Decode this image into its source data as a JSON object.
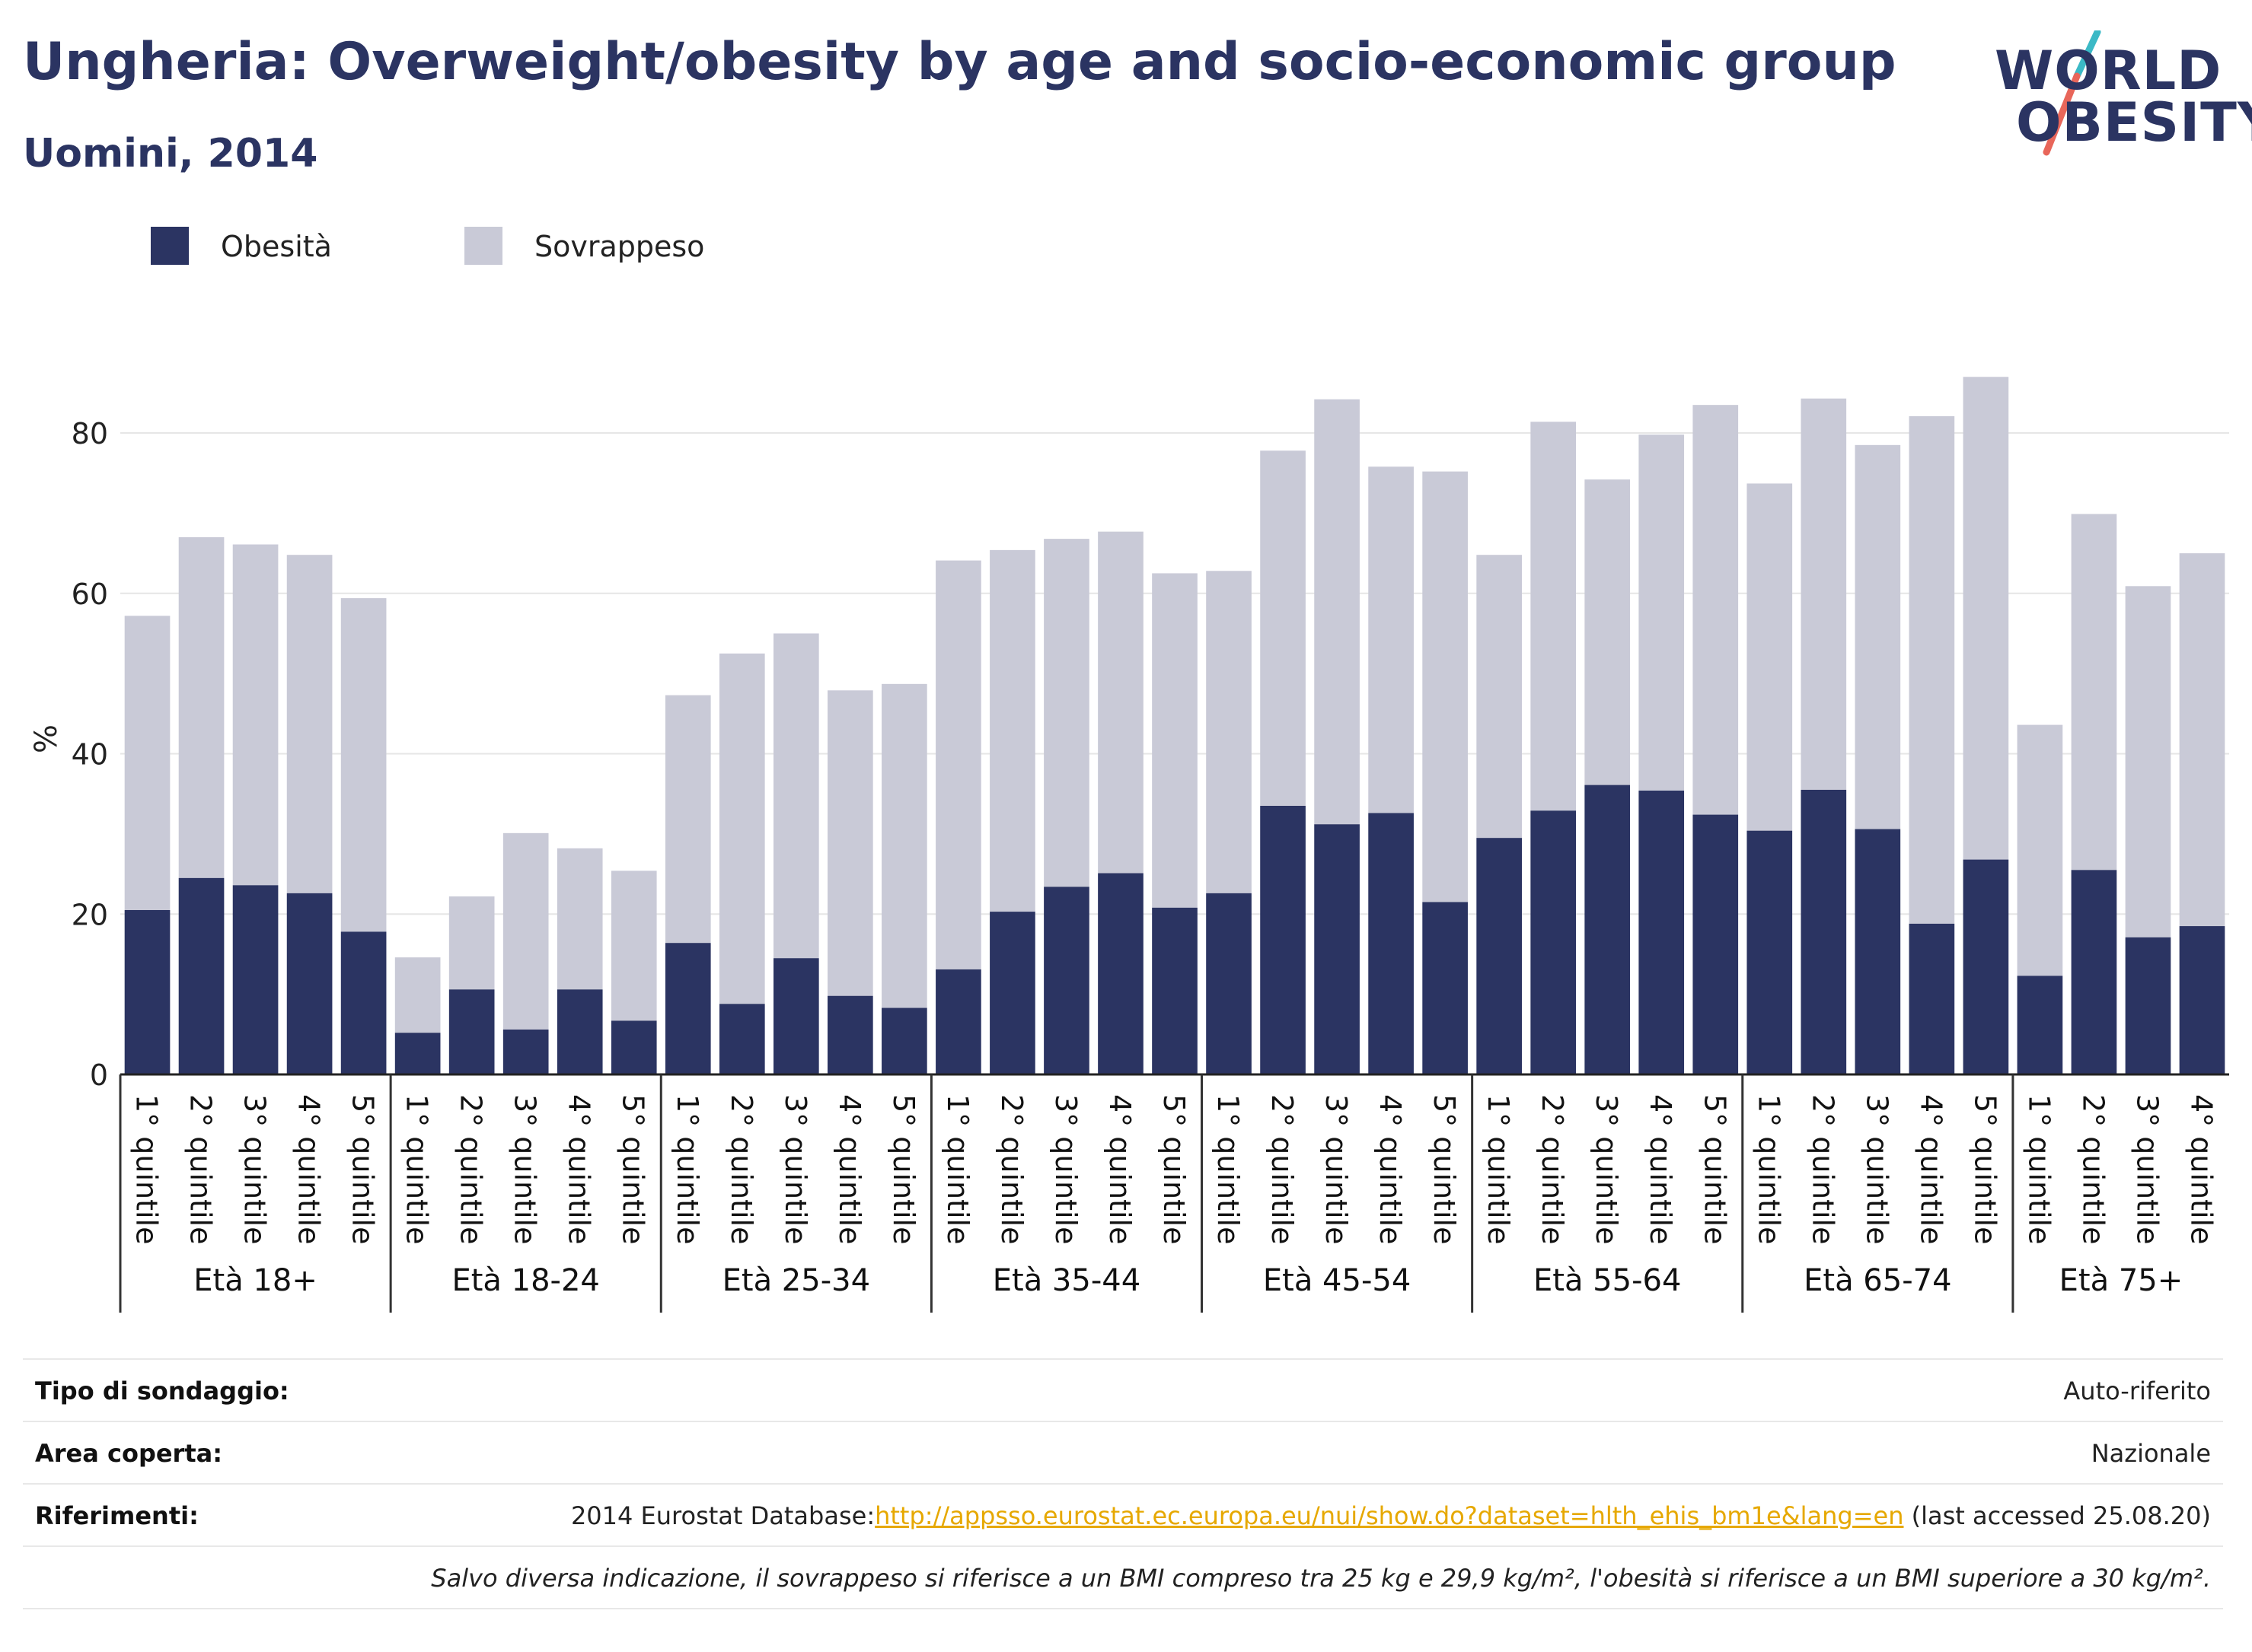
{
  "header": {
    "title": "Ungheria: Overweight/obesity by age and socio-economic group",
    "subtitle": "Uomini, 2014"
  },
  "logo": {
    "line1": "WORLD",
    "line2": "OBESITY",
    "colors": {
      "navy": "#2b3462",
      "teal": "#3bb9c6",
      "coral": "#e8665a"
    }
  },
  "legend": [
    {
      "label": "Obesità",
      "color": "#2b3462"
    },
    {
      "label": "Sovrappeso",
      "color": "#c9cad7"
    }
  ],
  "chart_data": {
    "type": "bar",
    "stacked": true,
    "ylabel": "%",
    "ylim": [
      0,
      92
    ],
    "yticks": [
      0,
      20,
      40,
      60,
      80
    ],
    "grid": true,
    "groups": [
      {
        "label": "Età 18+",
        "categories": [
          "1° quintile",
          "2° quintile",
          "3° quintile",
          "4° quintile",
          "5° quintile"
        ]
      },
      {
        "label": "Età 18-24",
        "categories": [
          "1° quintile",
          "2° quintile",
          "3° quintile",
          "4° quintile",
          "5° quintile"
        ]
      },
      {
        "label": "Età 25-34",
        "categories": [
          "1° quintile",
          "2° quintile",
          "3° quintile",
          "4° quintile",
          "5° quintile"
        ]
      },
      {
        "label": "Età 35-44",
        "categories": [
          "1° quintile",
          "2° quintile",
          "3° quintile",
          "4° quintile",
          "5° quintile"
        ]
      },
      {
        "label": "Età 45-54",
        "categories": [
          "1° quintile",
          "2° quintile",
          "3° quintile",
          "4° quintile",
          "5° quintile"
        ]
      },
      {
        "label": "Età 55-64",
        "categories": [
          "1° quintile",
          "2° quintile",
          "3° quintile",
          "4° quintile",
          "5° quintile"
        ]
      },
      {
        "label": "Età 65-74",
        "categories": [
          "1° quintile",
          "2° quintile",
          "3° quintile",
          "4° quintile",
          "5° quintile"
        ]
      },
      {
        "label": "Età 75+",
        "categories": [
          "1° quintile",
          "2° quintile",
          "3° quintile",
          "4° quintile"
        ]
      }
    ],
    "series": [
      {
        "name": "Obesità",
        "color": "#2b3462",
        "values": [
          20.5,
          24.5,
          23.6,
          22.6,
          17.8,
          5.2,
          10.6,
          5.6,
          10.6,
          6.7,
          16.4,
          8.8,
          14.5,
          9.8,
          8.3,
          13.1,
          20.3,
          23.4,
          25.1,
          20.8,
          22.6,
          33.5,
          31.2,
          32.6,
          21.5,
          29.5,
          32.9,
          36.1,
          35.4,
          32.4,
          30.4,
          35.5,
          30.6,
          18.8,
          26.8,
          12.3,
          25.5,
          17.1,
          18.5
        ]
      },
      {
        "name": "Sovrappeso",
        "color": "#c9cad7",
        "values": [
          36.7,
          42.5,
          42.5,
          42.2,
          41.6,
          9.4,
          11.6,
          24.5,
          17.6,
          18.7,
          30.9,
          43.7,
          40.5,
          38.1,
          40.4,
          51.0,
          45.1,
          43.4,
          42.6,
          41.7,
          40.2,
          44.3,
          53.0,
          43.2,
          53.7,
          35.3,
          48.5,
          38.1,
          44.4,
          51.1,
          43.3,
          48.8,
          47.9,
          63.3,
          60.2,
          31.3,
          44.4,
          43.8,
          46.5
        ]
      }
    ]
  },
  "info": {
    "rows": [
      {
        "label": "Tipo di sondaggio:",
        "value": "Auto-riferito"
      },
      {
        "label": "Area coperta:",
        "value": "Nazionale"
      }
    ],
    "references": {
      "label": "Riferimenti:",
      "prefix": "2014 Eurostat Database:",
      "link": "http://appsso.eurostat.ec.europa.eu/nui/show.do?dataset=hlth_ehis_bm1e&lang=en",
      "suffix": " (last accessed 25.08.20)"
    },
    "note": "Salvo diversa indicazione, il sovrappeso si riferisce a un BMI compreso tra 25 kg e 29,9 kg/m², l'obesità si riferisce a un BMI superiore a 30 kg/m²."
  }
}
